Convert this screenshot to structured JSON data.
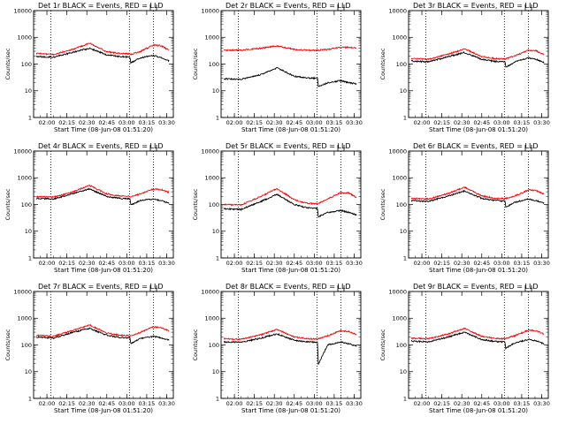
{
  "shared": {
    "type": "line",
    "xlabel": "Start Time (08-Jun-08 01:51:20)",
    "ylabel": "Counts/sec",
    "yscale": "log",
    "ylim": [
      1,
      10000
    ],
    "yticks": [
      "1",
      "10",
      "100",
      "1000",
      "10000"
    ],
    "xlim_min": [
      110,
      215
    ],
    "xticks": [
      {
        "t": 120,
        "label": "02:00"
      },
      {
        "t": 135,
        "label": "02:15"
      },
      {
        "t": 150,
        "label": "02:30"
      },
      {
        "t": 165,
        "label": "02:45"
      },
      {
        "t": 180,
        "label": "03:00"
      },
      {
        "t": 195,
        "label": "03:15"
      },
      {
        "t": 210,
        "label": "03:30"
      }
    ],
    "dotted_lines_min": [
      123,
      182,
      200
    ],
    "colors": {
      "events": "#000000",
      "lld": "#ff0000"
    }
  },
  "chart_data": [
    {
      "title": "Det 1r BLACK = Events, RED = LLD",
      "series": [
        {
          "name": "Events",
          "x": [
            112,
            125,
            140,
            152,
            165,
            175,
            182.5,
            183,
            190,
            200,
            206,
            212
          ],
          "values": [
            190,
            180,
            280,
            390,
            220,
            190,
            180,
            110,
            170,
            210,
            170,
            130
          ]
        },
        {
          "name": "LLD",
          "x": [
            112,
            125,
            140,
            152,
            165,
            175,
            182.5,
            183,
            190,
            200,
            206,
            212
          ],
          "values": [
            250,
            230,
            360,
            600,
            290,
            250,
            240,
            230,
            290,
            520,
            480,
            320
          ]
        }
      ]
    },
    {
      "title": "Det 2r BLACK = Events, RED = LLD",
      "series": [
        {
          "name": "Events",
          "x": [
            112,
            125,
            140,
            152,
            165,
            175,
            182.5,
            183,
            190,
            200,
            206,
            212
          ],
          "values": [
            28,
            27,
            40,
            72,
            35,
            30,
            29,
            14,
            20,
            24,
            20,
            18
          ]
        },
        {
          "name": "LLD",
          "x": [
            112,
            125,
            140,
            152,
            165,
            175,
            182.5,
            183,
            190,
            200,
            206,
            212
          ],
          "values": [
            330,
            330,
            390,
            480,
            350,
            330,
            320,
            330,
            350,
            420,
            420,
            400
          ]
        }
      ]
    },
    {
      "title": "Det 3r BLACK = Events, RED = LLD",
      "series": [
        {
          "name": "Events",
          "x": [
            112,
            125,
            140,
            152,
            165,
            175,
            182.5,
            183,
            190,
            200,
            206,
            212
          ],
          "values": [
            130,
            120,
            190,
            270,
            150,
            125,
            120,
            75,
            120,
            170,
            150,
            110
          ]
        },
        {
          "name": "LLD",
          "x": [
            112,
            125,
            140,
            152,
            165,
            175,
            182.5,
            183,
            190,
            200,
            206,
            212
          ],
          "values": [
            160,
            150,
            240,
            370,
            190,
            160,
            155,
            160,
            200,
            330,
            310,
            220
          ]
        }
      ]
    },
    {
      "title": "Det 4r BLACK = Events, RED = LLD",
      "series": [
        {
          "name": "Events",
          "x": [
            112,
            125,
            140,
            152,
            165,
            175,
            182.5,
            183,
            190,
            200,
            206,
            212
          ],
          "values": [
            170,
            160,
            260,
            380,
            200,
            170,
            165,
            95,
            140,
            160,
            140,
            110
          ]
        },
        {
          "name": "LLD",
          "x": [
            112,
            125,
            140,
            152,
            165,
            175,
            182.5,
            183,
            190,
            200,
            206,
            212
          ],
          "values": [
            200,
            190,
            300,
            520,
            250,
            210,
            200,
            190,
            250,
            380,
            360,
            280
          ]
        }
      ]
    },
    {
      "title": "Det 5r BLACK = Events, RED = LLD",
      "series": [
        {
          "name": "Events",
          "x": [
            112,
            125,
            140,
            152,
            165,
            175,
            182.5,
            183,
            190,
            200,
            206,
            212
          ],
          "values": [
            70,
            65,
            130,
            240,
            100,
            75,
            72,
            35,
            50,
            60,
            50,
            40
          ]
        },
        {
          "name": "LLD",
          "x": [
            112,
            125,
            140,
            152,
            165,
            175,
            182.5,
            183,
            190,
            200,
            206,
            212
          ],
          "values": [
            100,
            95,
            200,
            400,
            150,
            110,
            105,
            110,
            160,
            280,
            270,
            180
          ]
        }
      ]
    },
    {
      "title": "Det 6r BLACK = Events, RED = LLD",
      "series": [
        {
          "name": "Events",
          "x": [
            112,
            125,
            140,
            152,
            165,
            175,
            182.5,
            183,
            190,
            200,
            206,
            212
          ],
          "values": [
            140,
            130,
            210,
            320,
            170,
            140,
            135,
            80,
            120,
            160,
            140,
            110
          ]
        },
        {
          "name": "LLD",
          "x": [
            112,
            125,
            140,
            152,
            165,
            175,
            182.5,
            183,
            190,
            200,
            206,
            212
          ],
          "values": [
            170,
            160,
            260,
            440,
            210,
            170,
            165,
            170,
            210,
            350,
            330,
            240
          ]
        }
      ]
    },
    {
      "title": "Det 7r BLACK = Events, RED = LLD",
      "series": [
        {
          "name": "Events",
          "x": [
            112,
            125,
            140,
            152,
            165,
            175,
            182.5,
            183,
            190,
            200,
            206,
            212
          ],
          "values": [
            200,
            180,
            300,
            420,
            230,
            190,
            180,
            110,
            170,
            210,
            180,
            150
          ]
        },
        {
          "name": "LLD",
          "x": [
            112,
            125,
            140,
            152,
            165,
            175,
            182.5,
            183,
            190,
            200,
            206,
            212
          ],
          "values": [
            230,
            210,
            360,
            560,
            280,
            230,
            220,
            220,
            290,
            480,
            440,
            330
          ]
        }
      ]
    },
    {
      "title": "Det 8r BLACK = Events, RED = LLD",
      "series": [
        {
          "name": "Events",
          "x": [
            112,
            125,
            140,
            152,
            165,
            175,
            182.5,
            183,
            190,
            200,
            206,
            212
          ],
          "values": [
            130,
            125,
            180,
            260,
            150,
            130,
            125,
            18,
            100,
            130,
            110,
            90
          ]
        },
        {
          "name": "LLD",
          "x": [
            112,
            125,
            140,
            152,
            165,
            175,
            182.5,
            183,
            190,
            200,
            206,
            212
          ],
          "values": [
            170,
            165,
            240,
            380,
            200,
            170,
            165,
            170,
            220,
            340,
            320,
            240
          ]
        }
      ]
    },
    {
      "title": "Det 9r BLACK = Events, RED = LLD",
      "series": [
        {
          "name": "Events",
          "x": [
            112,
            125,
            140,
            152,
            165,
            175,
            182.5,
            183,
            190,
            200,
            206,
            212
          ],
          "values": [
            140,
            130,
            200,
            300,
            160,
            135,
            130,
            75,
            120,
            160,
            140,
            110
          ]
        },
        {
          "name": "LLD",
          "x": [
            112,
            125,
            140,
            152,
            165,
            175,
            182.5,
            183,
            190,
            200,
            206,
            212
          ],
          "values": [
            180,
            170,
            260,
            420,
            210,
            175,
            170,
            175,
            220,
            360,
            340,
            250
          ]
        }
      ]
    }
  ]
}
